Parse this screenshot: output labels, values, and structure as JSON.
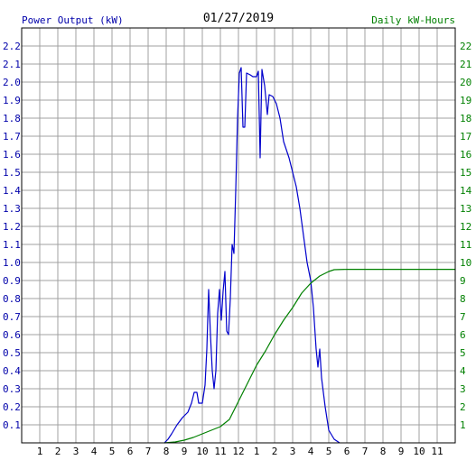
{
  "chart_data": {
    "type": "line",
    "title": "01/27/2019",
    "left_axis_label": "Power Output (kW)",
    "right_axis_label": "Daily kW-Hours",
    "x_tick_labels": [
      "1",
      "2",
      "3",
      "4",
      "5",
      "6",
      "7",
      "8",
      "9",
      "10",
      "11",
      "12",
      "1",
      "2",
      "3",
      "4",
      "5",
      "6",
      "7",
      "8",
      "9",
      "10",
      "11"
    ],
    "y_left_ticks": [
      "0.1",
      "0.2",
      "0.3",
      "0.4",
      "0.5",
      "0.6",
      "0.7",
      "0.8",
      "0.9",
      "1.0",
      "1.1",
      "1.2",
      "1.3",
      "1.4",
      "1.5",
      "1.6",
      "1.7",
      "1.8",
      "1.9",
      "2.0",
      "2.1",
      "2.2"
    ],
    "y_right_ticks": [
      "1",
      "2",
      "3",
      "4",
      "5",
      "6",
      "7",
      "8",
      "9",
      "10",
      "11",
      "12",
      "13",
      "14",
      "15",
      "16",
      "17",
      "18",
      "19",
      "20",
      "21",
      "22"
    ],
    "x_range_hours": [
      0,
      24
    ],
    "y_left_range": [
      0,
      2.3
    ],
    "y_right_range": [
      0,
      23
    ],
    "grid": true,
    "colors": {
      "power": "#0000cc",
      "energy": "#008000",
      "left_axis_text": "#0000aa",
      "right_axis_text": "#008000",
      "grid": "#a0a0a0",
      "title": "#000000"
    },
    "series": [
      {
        "key": "power",
        "axis": "left",
        "points": [
          [
            7.9,
            0.0
          ],
          [
            8.1,
            0.02
          ],
          [
            8.3,
            0.05
          ],
          [
            8.6,
            0.1
          ],
          [
            8.9,
            0.14
          ],
          [
            9.2,
            0.17
          ],
          [
            9.4,
            0.22
          ],
          [
            9.55,
            0.28
          ],
          [
            9.7,
            0.28
          ],
          [
            9.8,
            0.22
          ],
          [
            10.0,
            0.22
          ],
          [
            10.15,
            0.32
          ],
          [
            10.25,
            0.52
          ],
          [
            10.35,
            0.85
          ],
          [
            10.45,
            0.6
          ],
          [
            10.55,
            0.4
          ],
          [
            10.65,
            0.3
          ],
          [
            10.75,
            0.4
          ],
          [
            10.85,
            0.72
          ],
          [
            10.95,
            0.85
          ],
          [
            11.05,
            0.68
          ],
          [
            11.15,
            0.84
          ],
          [
            11.25,
            0.95
          ],
          [
            11.35,
            0.62
          ],
          [
            11.45,
            0.6
          ],
          [
            11.55,
            0.8
          ],
          [
            11.65,
            1.1
          ],
          [
            11.75,
            1.05
          ],
          [
            11.85,
            1.4
          ],
          [
            11.95,
            1.8
          ],
          [
            12.05,
            2.05
          ],
          [
            12.15,
            2.08
          ],
          [
            12.25,
            1.75
          ],
          [
            12.35,
            1.75
          ],
          [
            12.45,
            2.05
          ],
          [
            12.65,
            2.04
          ],
          [
            12.8,
            2.03
          ],
          [
            13.0,
            2.03
          ],
          [
            13.1,
            2.06
          ],
          [
            13.2,
            1.58
          ],
          [
            13.3,
            2.07
          ],
          [
            13.45,
            1.98
          ],
          [
            13.6,
            1.82
          ],
          [
            13.7,
            1.93
          ],
          [
            13.9,
            1.92
          ],
          [
            14.1,
            1.88
          ],
          [
            14.3,
            1.8
          ],
          [
            14.5,
            1.67
          ],
          [
            14.8,
            1.58
          ],
          [
            15.0,
            1.5
          ],
          [
            15.2,
            1.42
          ],
          [
            15.4,
            1.3
          ],
          [
            15.6,
            1.15
          ],
          [
            15.8,
            1.0
          ],
          [
            16.0,
            0.9
          ],
          [
            16.15,
            0.75
          ],
          [
            16.3,
            0.52
          ],
          [
            16.4,
            0.42
          ],
          [
            16.5,
            0.52
          ],
          [
            16.6,
            0.36
          ],
          [
            16.8,
            0.2
          ],
          [
            17.0,
            0.07
          ],
          [
            17.3,
            0.02
          ],
          [
            17.6,
            0.0
          ]
        ]
      },
      {
        "key": "energy",
        "axis": "right",
        "points": [
          [
            7.9,
            0.0
          ],
          [
            8.5,
            0.05
          ],
          [
            9.0,
            0.15
          ],
          [
            9.5,
            0.3
          ],
          [
            10.0,
            0.5
          ],
          [
            10.5,
            0.7
          ],
          [
            11.0,
            0.9
          ],
          [
            11.5,
            1.3
          ],
          [
            12.0,
            2.3
          ],
          [
            12.5,
            3.3
          ],
          [
            13.0,
            4.3
          ],
          [
            13.5,
            5.1
          ],
          [
            14.0,
            6.0
          ],
          [
            14.5,
            6.8
          ],
          [
            15.0,
            7.5
          ],
          [
            15.5,
            8.3
          ],
          [
            16.0,
            8.85
          ],
          [
            16.5,
            9.25
          ],
          [
            17.0,
            9.5
          ],
          [
            17.3,
            9.6
          ],
          [
            18.0,
            9.62
          ],
          [
            24.0,
            9.62
          ]
        ]
      }
    ]
  }
}
